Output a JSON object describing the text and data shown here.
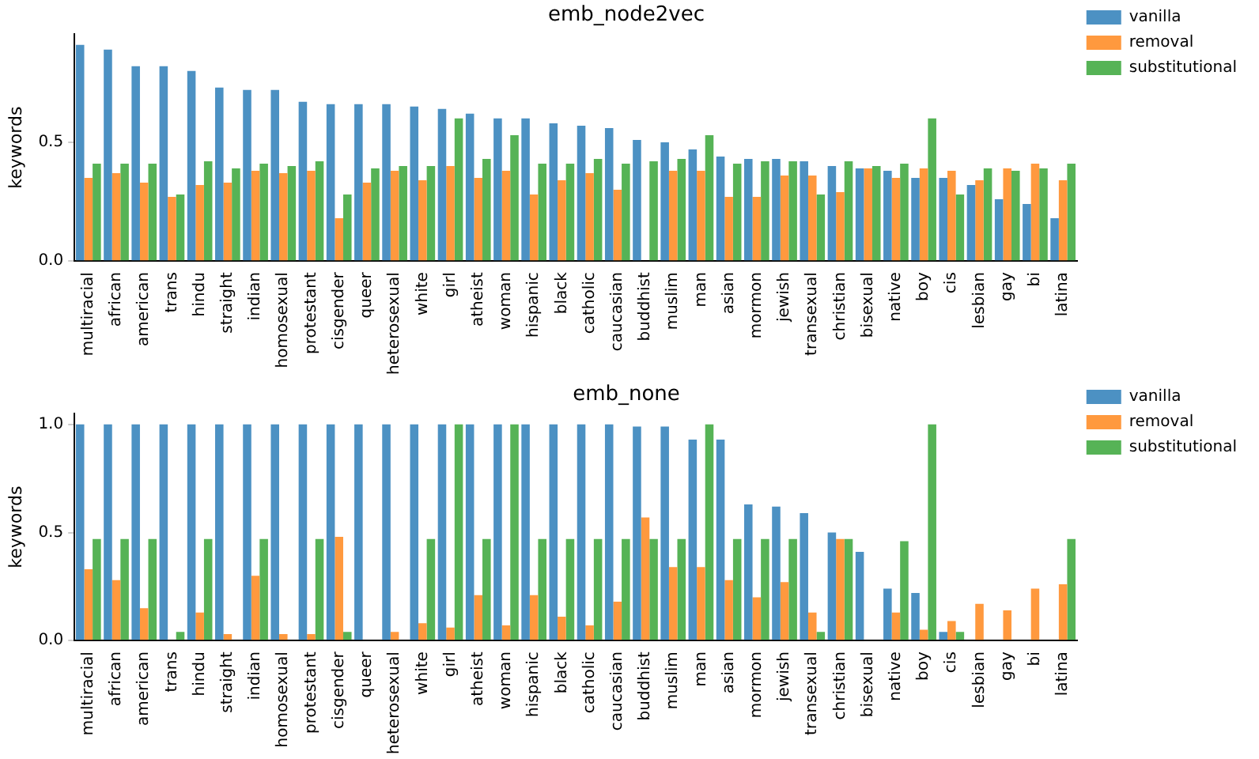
{
  "chart_data": [
    {
      "type": "bar",
      "title": "emb_node2vec",
      "ylabel": "keywords",
      "categories": [
        "multiracial",
        "african",
        "american",
        "trans",
        "hindu",
        "straight",
        "indian",
        "homosexual",
        "protestant",
        "cisgender",
        "queer",
        "heterosexual",
        "white",
        "girl",
        "atheist",
        "woman",
        "hispanic",
        "black",
        "catholic",
        "caucasian",
        "buddhist",
        "muslim",
        "man",
        "asian",
        "mormon",
        "jewish",
        "transexual",
        "christian",
        "bisexual",
        "native",
        "boy",
        "cis",
        "lesbian",
        "gay",
        "bi",
        "latina"
      ],
      "series": [
        {
          "name": "vanilla",
          "color": "#4c91c3",
          "values": [
            0.91,
            0.89,
            0.82,
            0.82,
            0.8,
            0.73,
            0.72,
            0.72,
            0.67,
            0.66,
            0.66,
            0.66,
            0.65,
            0.64,
            0.62,
            0.6,
            0.6,
            0.58,
            0.57,
            0.56,
            0.51,
            0.5,
            0.47,
            0.44,
            0.43,
            0.43,
            0.42,
            0.4,
            0.39,
            0.38,
            0.35,
            0.35,
            0.32,
            0.26,
            0.24,
            0.18
          ]
        },
        {
          "name": "removal",
          "color": "#ff993e",
          "values": [
            0.35,
            0.37,
            0.33,
            0.27,
            0.32,
            0.33,
            0.38,
            0.37,
            0.38,
            0.18,
            0.33,
            0.38,
            0.34,
            0.4,
            0.35,
            0.38,
            0.28,
            0.34,
            0.37,
            0.3,
            0,
            0.38,
            0.38,
            0.27,
            0.27,
            0.36,
            0.36,
            0.29,
            0.39,
            0.35,
            0.39,
            0.38,
            0.34,
            0.39,
            0.41,
            0.34
          ]
        },
        {
          "name": "substitutional",
          "color": "#56b356",
          "values": [
            0.41,
            0.41,
            0.41,
            0.28,
            0.42,
            0.39,
            0.41,
            0.4,
            0.42,
            0.28,
            0.39,
            0.4,
            0.4,
            0.6,
            0.43,
            0.53,
            0.41,
            0.41,
            0.43,
            0.41,
            0.42,
            0.43,
            0.53,
            0.41,
            0.42,
            0.42,
            0.28,
            0.42,
            0.4,
            0.41,
            0.6,
            0.28,
            0.39,
            0.38,
            0.39,
            0.41
          ]
        }
      ],
      "ylim": [
        0,
        0.955
      ],
      "yticks": [
        {
          "value": 0,
          "label": "0.0"
        },
        {
          "value": 0.5,
          "label": "0.5"
        }
      ],
      "legend": "right",
      "grid": false
    },
    {
      "type": "bar",
      "title": "emb_none",
      "ylabel": "keywords",
      "categories": [
        "multiracial",
        "african",
        "american",
        "trans",
        "hindu",
        "straight",
        "indian",
        "homosexual",
        "protestant",
        "cisgender",
        "queer",
        "heterosexual",
        "white",
        "girl",
        "atheist",
        "woman",
        "hispanic",
        "black",
        "catholic",
        "caucasian",
        "buddhist",
        "muslim",
        "man",
        "asian",
        "mormon",
        "jewish",
        "transexual",
        "christian",
        "bisexual",
        "native",
        "boy",
        "cis",
        "lesbian",
        "gay",
        "bi",
        "latina"
      ],
      "series": [
        {
          "name": "vanilla",
          "color": "#4c91c3",
          "values": [
            1,
            1,
            1,
            1,
            1,
            1,
            1,
            1,
            1,
            1,
            1,
            1,
            1,
            1,
            1,
            1,
            1,
            1,
            1,
            1,
            0.99,
            0.99,
            0.93,
            0.93,
            0.63,
            0.62,
            0.59,
            0.5,
            0.41,
            0.24,
            0.22,
            0.04,
            0,
            0,
            0,
            0
          ]
        },
        {
          "name": "removal",
          "color": "#ff993e",
          "values": [
            0.33,
            0.28,
            0.15,
            0,
            0.13,
            0.03,
            0.3,
            0.03,
            0.03,
            0.48,
            0,
            0.04,
            0.08,
            0.06,
            0.21,
            0.07,
            0.21,
            0.11,
            0.07,
            0.18,
            0.57,
            0.34,
            0.34,
            0.28,
            0.2,
            0.27,
            0.13,
            0.47,
            0,
            0.13,
            0.05,
            0.09,
            0.17,
            0.14,
            0.24,
            0.26
          ]
        },
        {
          "name": "substitutional",
          "color": "#56b356",
          "values": [
            0.47,
            0.47,
            0.47,
            0.04,
            0.47,
            0,
            0.47,
            0,
            0.47,
            0.04,
            0,
            0,
            0.47,
            1,
            0.47,
            1,
            0.47,
            0.47,
            0.47,
            0.47,
            0.47,
            0.47,
            1,
            0.47,
            0.47,
            0.47,
            0.04,
            0.47,
            0,
            0.46,
            1,
            0.04,
            0,
            0,
            0,
            0.47
          ]
        }
      ],
      "ylim": [
        0,
        1.05
      ],
      "yticks": [
        {
          "value": 0,
          "label": "0.0"
        },
        {
          "value": 0.5,
          "label": "0.5"
        },
        {
          "value": 1,
          "label": "1.0"
        }
      ],
      "legend": "right",
      "grid": false
    }
  ]
}
